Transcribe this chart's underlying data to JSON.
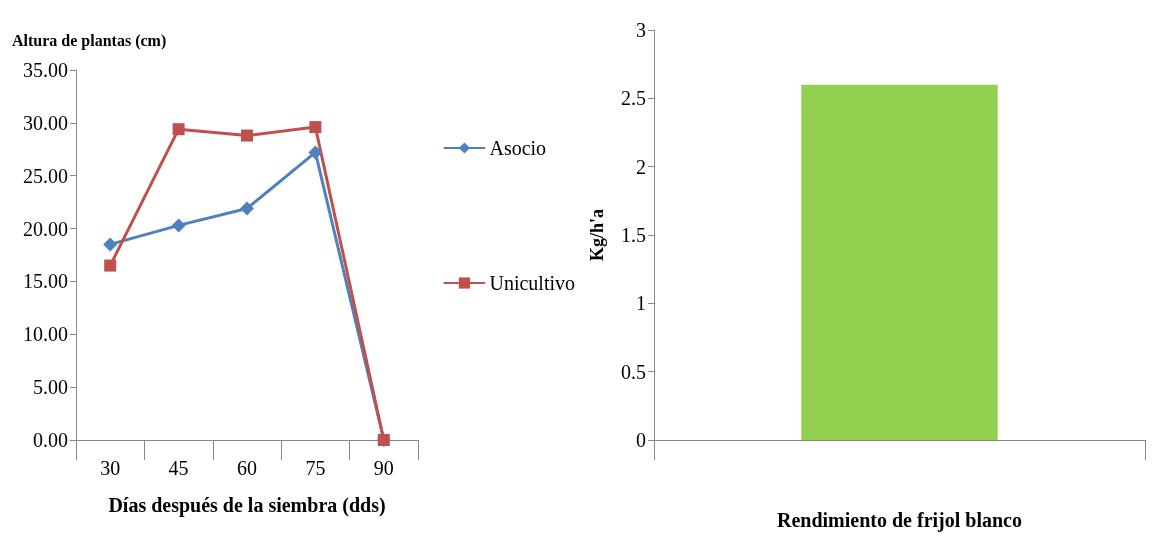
{
  "chart_data": [
    {
      "type": "line",
      "ylabel": "Altura de plantas (cm)",
      "xlabel": "Días después de la siembra (dds)",
      "categories": [
        "30",
        "45",
        "60",
        "75",
        "90"
      ],
      "series": [
        {
          "name": "Asocio",
          "color": "#4f81bd",
          "marker": "diamond",
          "values": [
            18.5,
            20.3,
            21.9,
            27.2,
            0
          ]
        },
        {
          "name": "Unicultivo",
          "color": "#c0504d",
          "marker": "square",
          "values": [
            16.5,
            29.4,
            28.8,
            29.6,
            0
          ]
        }
      ],
      "ylim": [
        0,
        35
      ],
      "yticks": [
        {
          "value": 0,
          "label": "0.00"
        },
        {
          "value": 5,
          "label": "5.00"
        },
        {
          "value": 10,
          "label": "10.00"
        },
        {
          "value": 15,
          "label": "15.00"
        },
        {
          "value": 20,
          "label": "20.00"
        },
        {
          "value": 25,
          "label": "25.00"
        },
        {
          "value": 30,
          "label": "30.00"
        },
        {
          "value": 35,
          "label": "35.00"
        }
      ],
      "grid": false,
      "legend": "right",
      "line_style": "solid"
    },
    {
      "type": "bar",
      "ylabel": "Kg/h'a",
      "xlabel": "Rendimiento de frijol blanco",
      "categories": [
        null
      ],
      "series": [
        {
          "color": "#92d050",
          "values": [
            2.6
          ]
        }
      ],
      "ylim": [
        0,
        3
      ],
      "yticks": [
        0,
        0.5,
        1,
        1.5,
        2,
        2.5,
        3
      ],
      "grid": false
    }
  ]
}
